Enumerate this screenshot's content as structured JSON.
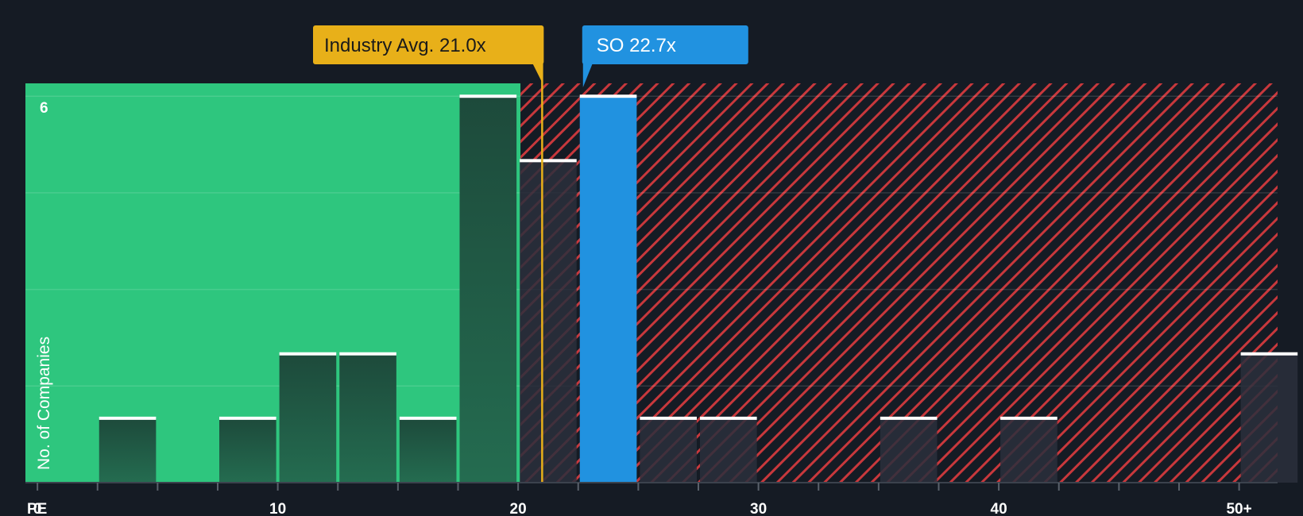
{
  "chart_data": {
    "type": "bar",
    "x_axis_label": "PE",
    "y_axis_label": "No. of Companies",
    "x_range": [
      -0.5,
      51.6
    ],
    "y_range": [
      0,
      6.2
    ],
    "x_ticks": [
      {
        "value": 0,
        "label": "0"
      },
      {
        "value": 10,
        "label": "10"
      },
      {
        "value": 20,
        "label": "20"
      },
      {
        "value": 30,
        "label": "30"
      },
      {
        "value": 40,
        "label": "40"
      },
      {
        "value": 50,
        "label": "50+"
      }
    ],
    "minor_ticks": [
      2.5,
      5,
      7.5,
      12.5,
      15,
      17.5,
      22.5,
      25,
      27.5,
      32.5,
      35,
      37.5,
      42.5,
      45,
      47.5
    ],
    "y_ticks": [
      {
        "value": 6,
        "label": "6"
      }
    ],
    "gridlines": [
      1.5,
      3,
      4.5,
      6
    ],
    "bins": [
      {
        "start": 2.5,
        "end": 5,
        "count": 1
      },
      {
        "start": 7.5,
        "end": 10,
        "count": 1
      },
      {
        "start": 10,
        "end": 12.5,
        "count": 2
      },
      {
        "start": 12.5,
        "end": 15,
        "count": 2
      },
      {
        "start": 15,
        "end": 17.5,
        "count": 1
      },
      {
        "start": 17.5,
        "end": 20,
        "count": 6
      },
      {
        "start": 20,
        "end": 22.5,
        "count": 5
      },
      {
        "start": 22.5,
        "end": 25,
        "count": 6,
        "highlight": true
      },
      {
        "start": 25,
        "end": 27.5,
        "count": 1
      },
      {
        "start": 27.5,
        "end": 30,
        "count": 1
      },
      {
        "start": 35,
        "end": 37.5,
        "count": 1
      },
      {
        "start": 40,
        "end": 42.5,
        "count": 1
      },
      {
        "start": 50,
        "end": 52.5,
        "count": 2
      }
    ],
    "fair_zone_end": 20.1,
    "industry_avg": {
      "label": "Industry Avg. 21.0x",
      "value": 21.0
    },
    "company": {
      "label": "SO 22.7x",
      "value": 22.7
    },
    "colors": {
      "background": "#151b24",
      "fair_zone": "#2ec67e",
      "bar_in_fair": "#1e4a3c",
      "bar_in_expensive": "#2a2f3c",
      "highlight": "#2192e0",
      "industry": "#e8b019",
      "hatch": "#c8383c",
      "bar_cap": "#ffffff",
      "text": "#ffffff"
    }
  }
}
